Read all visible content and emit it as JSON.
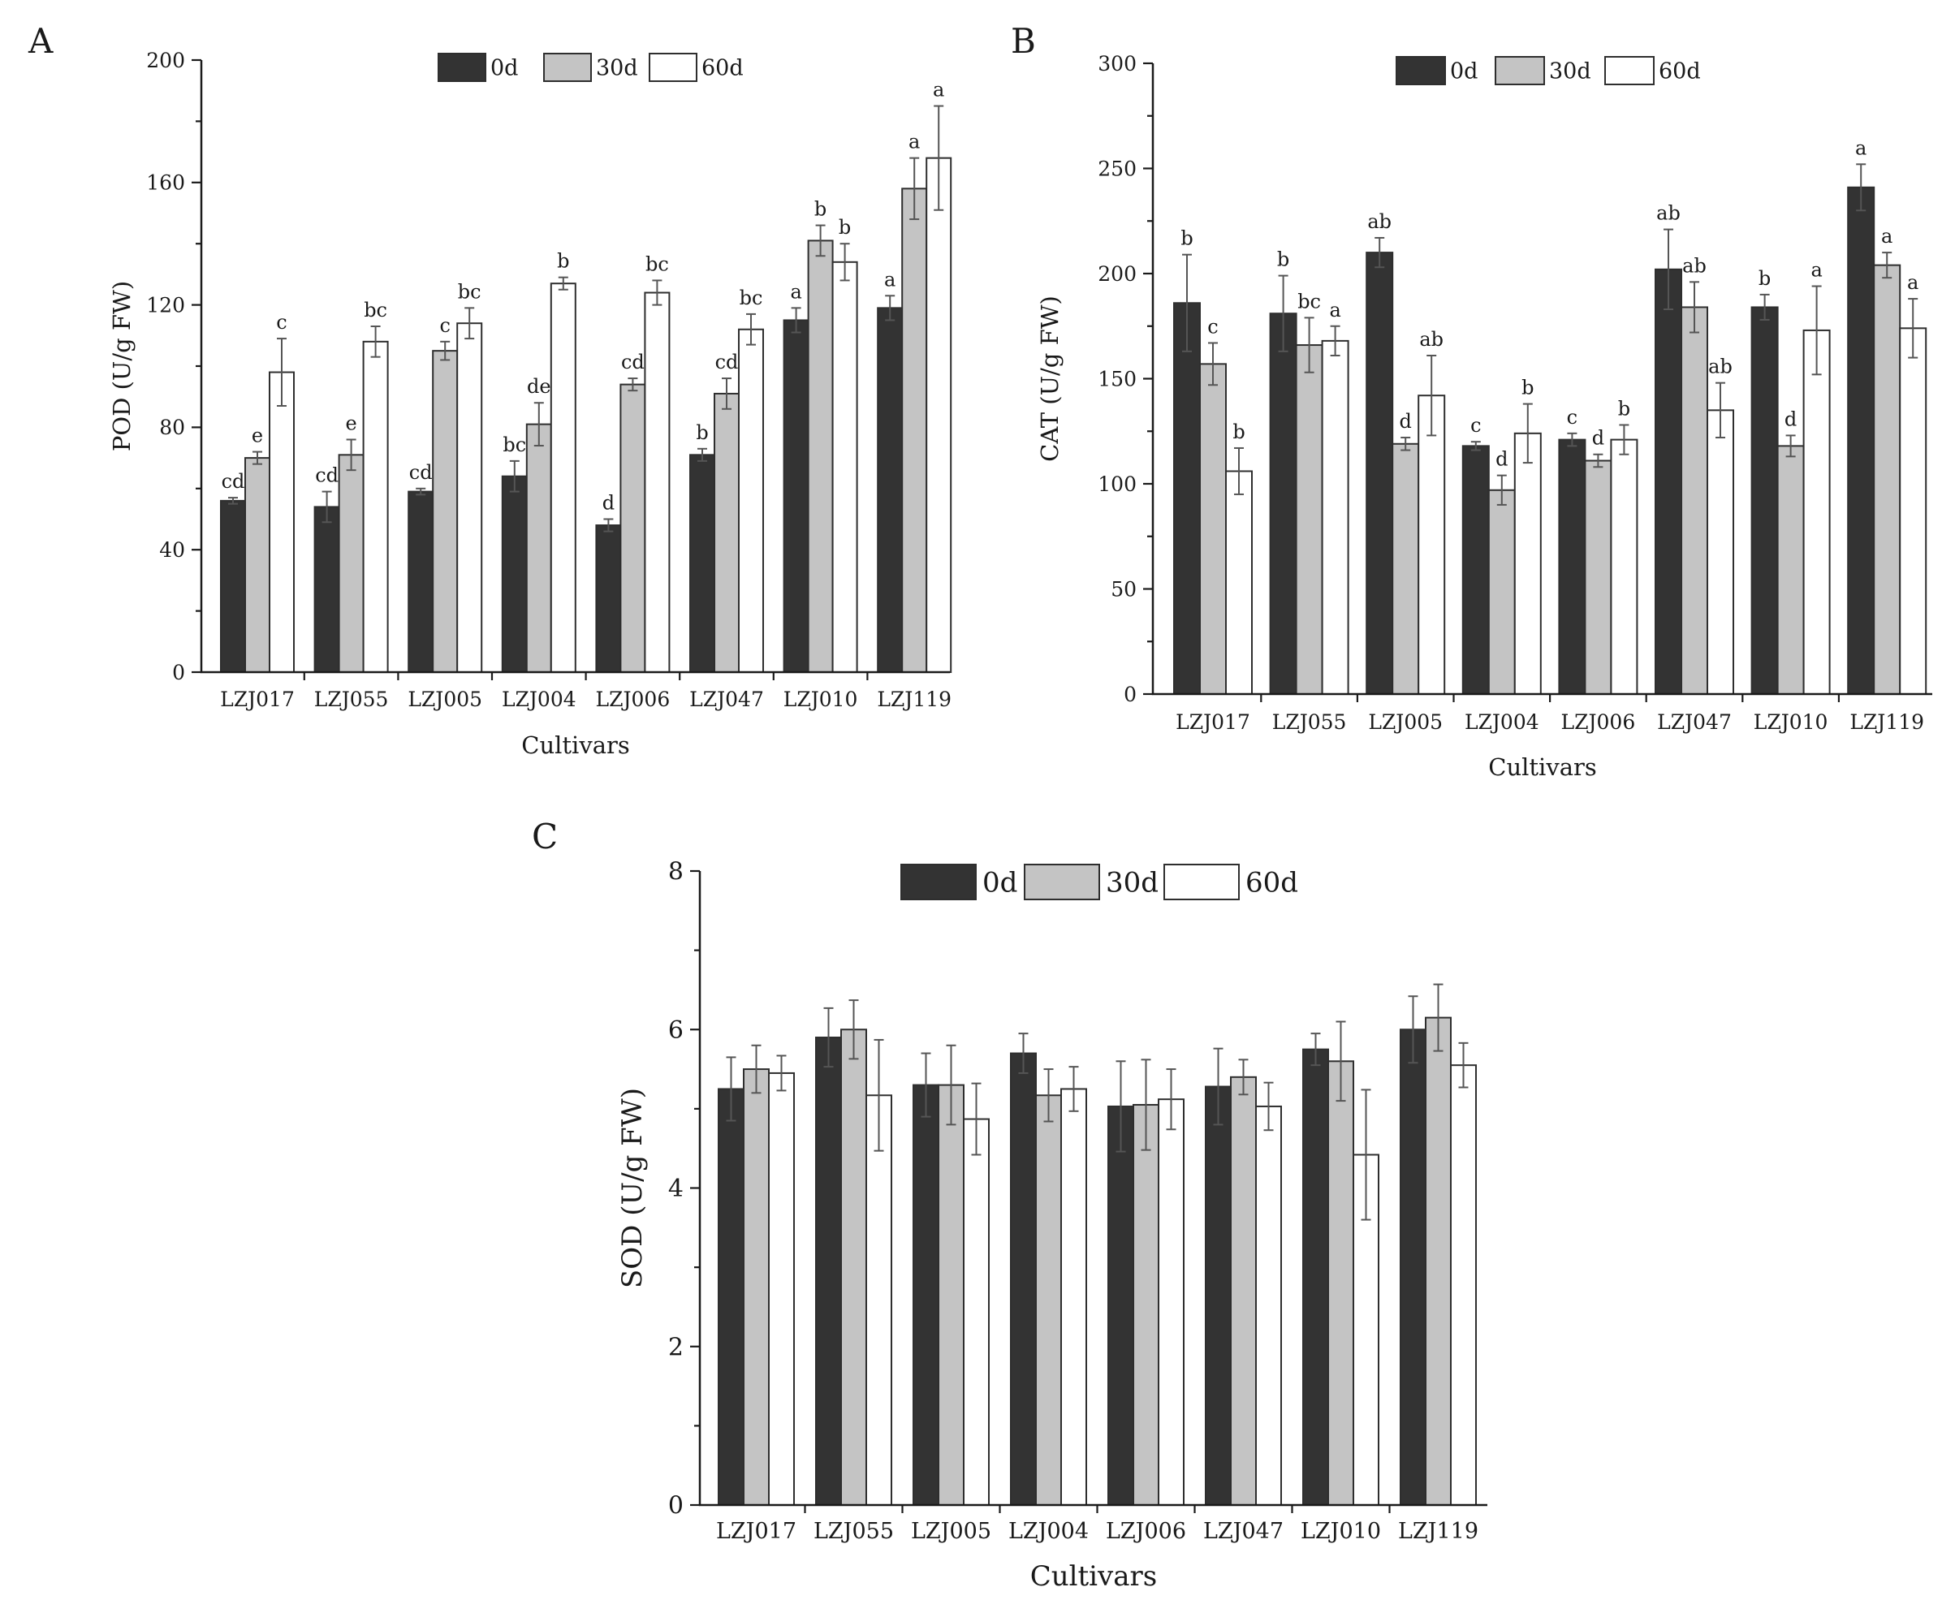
{
  "colors": {
    "s0d": "#333333",
    "s30d": "#c4c4c4",
    "s60d": "#ffffff",
    "axis": "#1a1a1a",
    "error": "#555555"
  },
  "chart_data": [
    {
      "panel_label": "A",
      "type": "bar",
      "ylabel": "POD (U/g FW)",
      "xlabel": "Cultivars",
      "ylim": [
        0,
        200
      ],
      "yticks": [
        0,
        40,
        80,
        120,
        160,
        200
      ],
      "legend": "top-center",
      "categories": [
        "LZJ017",
        "LZJ055",
        "LZJ005",
        "LZJ004",
        "LZJ006",
        "LZJ047",
        "LZJ010",
        "LZJ119"
      ],
      "series": [
        {
          "name": "0d",
          "values": [
            56,
            54,
            59,
            64,
            48,
            71,
            115,
            119
          ],
          "errors": [
            1,
            5,
            1,
            5,
            2,
            2,
            4,
            4
          ],
          "letters": [
            "cd",
            "cd",
            "cd",
            "bc",
            "d",
            "b",
            "a",
            "a"
          ]
        },
        {
          "name": "30d",
          "values": [
            70,
            71,
            105,
            81,
            94,
            91,
            141,
            158
          ],
          "errors": [
            2,
            5,
            3,
            7,
            2,
            5,
            5,
            10
          ],
          "letters": [
            "e",
            "e",
            "c",
            "de",
            "cd",
            "cd",
            "b",
            "a"
          ]
        },
        {
          "name": "60d",
          "values": [
            98,
            108,
            114,
            127,
            124,
            112,
            134,
            168
          ],
          "errors": [
            11,
            5,
            5,
            2,
            4,
            5,
            6,
            17
          ],
          "letters": [
            "c",
            "bc",
            "bc",
            "b",
            "bc",
            "bc",
            "b",
            "a"
          ]
        }
      ]
    },
    {
      "panel_label": "B",
      "type": "bar",
      "ylabel": "CAT (U/g FW)",
      "xlabel": "Cultivars",
      "ylim": [
        0,
        300
      ],
      "yticks": [
        0,
        50,
        100,
        150,
        200,
        250,
        300
      ],
      "legend": "top-center",
      "categories": [
        "LZJ017",
        "LZJ055",
        "LZJ005",
        "LZJ004",
        "LZJ006",
        "LZJ047",
        "LZJ010",
        "LZJ119"
      ],
      "series": [
        {
          "name": "0d",
          "values": [
            186,
            181,
            210,
            118,
            121,
            202,
            184,
            241
          ],
          "errors": [
            23,
            18,
            7,
            2,
            3,
            19,
            6,
            11
          ],
          "letters": [
            "b",
            "b",
            "ab",
            "c",
            "c",
            "ab",
            "b",
            "a"
          ]
        },
        {
          "name": "30d",
          "values": [
            157,
            166,
            119,
            97,
            111,
            184,
            118,
            204
          ],
          "errors": [
            10,
            13,
            3,
            7,
            3,
            12,
            5,
            6
          ],
          "letters": [
            "c",
            "bc",
            "d",
            "d",
            "d",
            "ab",
            "d",
            "a"
          ]
        },
        {
          "name": "60d",
          "values": [
            106,
            168,
            142,
            124,
            121,
            135,
            173,
            174
          ],
          "errors": [
            11,
            7,
            19,
            14,
            7,
            13,
            21,
            14
          ],
          "letters": [
            "b",
            "a",
            "ab",
            "b",
            "b",
            "ab",
            "a",
            "a"
          ]
        }
      ]
    },
    {
      "panel_label": "C",
      "type": "bar",
      "ylabel": "SOD (U/g FW)",
      "xlabel": "Cultivars",
      "ylim": [
        0,
        8
      ],
      "yticks": [
        0,
        2,
        4,
        6,
        8
      ],
      "legend": "top-center",
      "categories": [
        "LZJ017",
        "LZJ055",
        "LZJ005",
        "LZJ004",
        "LZJ006",
        "LZJ047",
        "LZJ010",
        "LZJ119"
      ],
      "series": [
        {
          "name": "0d",
          "values": [
            5.25,
            5.9,
            5.3,
            5.7,
            5.03,
            5.28,
            5.75,
            6.0
          ],
          "errors": [
            0.4,
            0.37,
            0.4,
            0.25,
            0.57,
            0.48,
            0.2,
            0.42
          ]
        },
        {
          "name": "30d",
          "values": [
            5.5,
            6.0,
            5.3,
            5.17,
            5.05,
            5.4,
            5.6,
            6.15
          ],
          "errors": [
            0.3,
            0.37,
            0.5,
            0.33,
            0.57,
            0.22,
            0.5,
            0.42
          ]
        },
        {
          "name": "60d",
          "values": [
            5.45,
            5.17,
            4.87,
            5.25,
            5.12,
            5.03,
            4.42,
            5.55
          ],
          "errors": [
            0.22,
            0.7,
            0.45,
            0.28,
            0.38,
            0.3,
            0.82,
            0.28
          ]
        }
      ]
    }
  ]
}
